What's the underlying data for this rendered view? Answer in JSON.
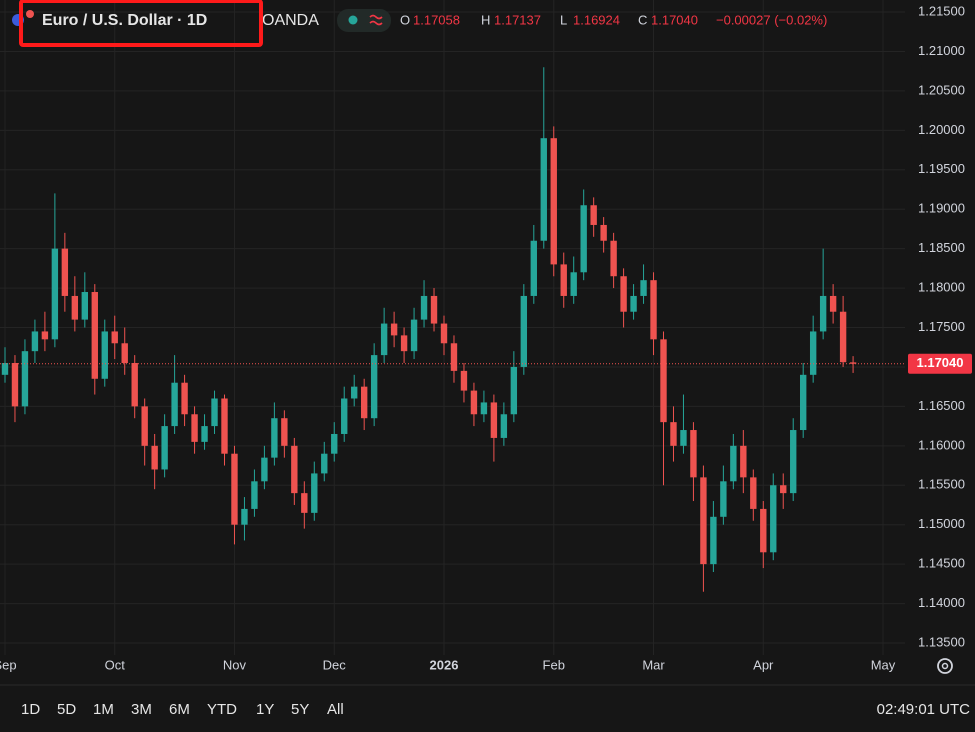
{
  "header": {
    "title": "Euro / U.S. Dollar · 1D",
    "source": "OANDA",
    "ohlc": [
      {
        "label": "O",
        "value": "1.17058"
      },
      {
        "label": "H",
        "value": "1.17137"
      },
      {
        "label": "L",
        "value": "1.16924"
      },
      {
        "label": "C",
        "value": "1.17040"
      }
    ],
    "change": "−0.00027 (−0.02%)"
  },
  "timeframes": [
    "1D",
    "5D",
    "1M",
    "3M",
    "6M",
    "YTD",
    "1Y",
    "5Y",
    "All"
  ],
  "clock": "02:49:01 UTC",
  "chart_data": {
    "type": "candlestick",
    "categories": [
      "Sep",
      null,
      null,
      null,
      null,
      null,
      null,
      null,
      null,
      null,
      null,
      "Oct",
      null,
      null,
      null,
      null,
      null,
      null,
      null,
      null,
      null,
      null,
      null,
      "Nov",
      null,
      null,
      null,
      null,
      null,
      null,
      null,
      null,
      null,
      "Dec",
      null,
      null,
      null,
      null,
      null,
      null,
      null,
      null,
      null,
      null,
      "2026",
      null,
      null,
      null,
      null,
      null,
      null,
      null,
      null,
      null,
      null,
      "Feb",
      null,
      null,
      null,
      null,
      null,
      null,
      null,
      null,
      null,
      "Mar",
      null,
      null,
      null,
      null,
      null,
      null,
      null,
      null,
      null,
      null,
      "Apr",
      null,
      null,
      null,
      null,
      null,
      null,
      null,
      null,
      null,
      null,
      null,
      "May"
    ],
    "open": [
      1.169,
      1.1705,
      1.165,
      1.172,
      1.1745,
      1.1735,
      1.185,
      1.179,
      1.176,
      1.1795,
      1.1685,
      1.1745,
      1.173,
      1.1705,
      1.165,
      1.16,
      1.157,
      1.1625,
      1.168,
      1.164,
      1.1605,
      1.1625,
      1.166,
      1.159,
      1.15,
      1.152,
      1.1555,
      1.1585,
      1.1635,
      1.16,
      1.154,
      1.1515,
      1.1565,
      1.159,
      1.1615,
      1.166,
      1.1675,
      1.1635,
      1.1715,
      1.1755,
      1.174,
      1.172,
      1.176,
      1.179,
      1.1755,
      1.173,
      1.1695,
      1.167,
      1.164,
      1.1655,
      1.161,
      1.164,
      1.17,
      1.179,
      1.186,
      1.199,
      1.183,
      1.179,
      1.182,
      1.1905,
      1.188,
      1.186,
      1.1815,
      1.177,
      1.179,
      1.181,
      1.1735,
      1.163,
      1.16,
      1.162,
      1.156,
      1.145,
      1.151,
      1.1555,
      1.16,
      1.156,
      1.152,
      1.1465,
      1.155,
      1.154,
      1.162,
      1.169,
      1.1745,
      1.179,
      1.177,
      1.17058,
      null,
      null,
      null
    ],
    "high": [
      1.1725,
      1.1715,
      1.1735,
      1.176,
      1.177,
      1.192,
      1.187,
      1.1815,
      1.182,
      1.1805,
      1.176,
      1.1765,
      1.175,
      1.1715,
      1.166,
      1.1615,
      1.164,
      1.1715,
      1.169,
      1.165,
      1.164,
      1.167,
      1.1665,
      1.16,
      1.1535,
      1.157,
      1.16,
      1.1655,
      1.1645,
      1.161,
      1.1555,
      1.158,
      1.1605,
      1.163,
      1.1675,
      1.169,
      1.1685,
      1.173,
      1.1775,
      1.177,
      1.175,
      1.1775,
      1.181,
      1.18,
      1.1765,
      1.174,
      1.1705,
      1.168,
      1.167,
      1.1665,
      1.1655,
      1.172,
      1.1805,
      1.188,
      1.208,
      1.2005,
      1.1845,
      1.184,
      1.1925,
      1.1915,
      1.189,
      1.187,
      1.1825,
      1.1805,
      1.183,
      1.182,
      1.1745,
      1.165,
      1.1665,
      1.163,
      1.1575,
      1.153,
      1.1575,
      1.1615,
      1.162,
      1.157,
      1.153,
      1.1565,
      1.1565,
      1.1635,
      1.1705,
      1.1765,
      1.185,
      1.1805,
      1.179,
      1.17137,
      null,
      null,
      null
    ],
    "low": [
      1.168,
      1.163,
      1.164,
      1.1705,
      1.172,
      1.1725,
      1.177,
      1.1745,
      1.175,
      1.1665,
      1.1675,
      1.171,
      1.169,
      1.1635,
      1.1575,
      1.1545,
      1.156,
      1.1615,
      1.1625,
      1.159,
      1.1595,
      1.1615,
      1.1575,
      1.1475,
      1.148,
      1.151,
      1.1545,
      1.1575,
      1.1585,
      1.1525,
      1.1495,
      1.1505,
      1.1555,
      1.158,
      1.1605,
      1.165,
      1.162,
      1.1625,
      1.1705,
      1.1725,
      1.1705,
      1.171,
      1.175,
      1.1745,
      1.1715,
      1.168,
      1.1655,
      1.1625,
      1.163,
      1.158,
      1.16,
      1.163,
      1.169,
      1.178,
      1.185,
      1.1815,
      1.1775,
      1.178,
      1.181,
      1.1865,
      1.1845,
      1.18,
      1.175,
      1.176,
      1.178,
      1.1715,
      1.155,
      1.158,
      1.159,
      1.153,
      1.1415,
      1.144,
      1.15,
      1.1545,
      1.154,
      1.1505,
      1.1445,
      1.1455,
      1.152,
      1.153,
      1.161,
      1.168,
      1.1735,
      1.1755,
      1.17,
      1.16924,
      null,
      null,
      null
    ],
    "close": [
      1.1705,
      1.165,
      1.172,
      1.1745,
      1.1735,
      1.185,
      1.179,
      1.176,
      1.1795,
      1.1685,
      1.1745,
      1.173,
      1.1705,
      1.165,
      1.16,
      1.157,
      1.1625,
      1.168,
      1.164,
      1.1605,
      1.1625,
      1.166,
      1.159,
      1.15,
      1.152,
      1.1555,
      1.1585,
      1.1635,
      1.16,
      1.154,
      1.1515,
      1.1565,
      1.159,
      1.1615,
      1.166,
      1.1675,
      1.1635,
      1.1715,
      1.1755,
      1.174,
      1.172,
      1.176,
      1.179,
      1.1755,
      1.173,
      1.1695,
      1.167,
      1.164,
      1.1655,
      1.161,
      1.164,
      1.17,
      1.179,
      1.186,
      1.199,
      1.183,
      1.179,
      1.182,
      1.1905,
      1.188,
      1.186,
      1.1815,
      1.177,
      1.179,
      1.181,
      1.1735,
      1.163,
      1.16,
      1.162,
      1.156,
      1.145,
      1.151,
      1.1555,
      1.16,
      1.156,
      1.152,
      1.1465,
      1.155,
      1.154,
      1.162,
      1.169,
      1.1745,
      1.179,
      1.177,
      1.1706,
      1.1704,
      null,
      null,
      null
    ],
    "up_color": "#26a69a",
    "down_color": "#ef5350",
    "ylim": [
      1.135,
      1.215
    ],
    "yticks": [
      {
        "value": 1.135,
        "label": "1.13500"
      },
      {
        "value": 1.14,
        "label": "1.14000"
      },
      {
        "value": 1.145,
        "label": "1.14500"
      },
      {
        "value": 1.15,
        "label": "1.15000"
      },
      {
        "value": 1.155,
        "label": "1.15500"
      },
      {
        "value": 1.16,
        "label": "1.16000"
      },
      {
        "value": 1.165,
        "label": "1.16500"
      },
      {
        "value": 1.17,
        "label": "1.17000"
      },
      {
        "value": 1.175,
        "label": "1.17500"
      },
      {
        "value": 1.18,
        "label": "1.18000"
      },
      {
        "value": 1.185,
        "label": "1.18500"
      },
      {
        "value": 1.19,
        "label": "1.19000"
      },
      {
        "value": 1.195,
        "label": "1.19500"
      },
      {
        "value": 1.2,
        "label": "1.20000"
      },
      {
        "value": 1.205,
        "label": "1.20500"
      },
      {
        "value": 1.21,
        "label": "1.21000"
      },
      {
        "value": 1.215,
        "label": "1.21500"
      }
    ],
    "last_price": {
      "value": 1.1704,
      "label": "1.17040"
    },
    "grid": true
  }
}
